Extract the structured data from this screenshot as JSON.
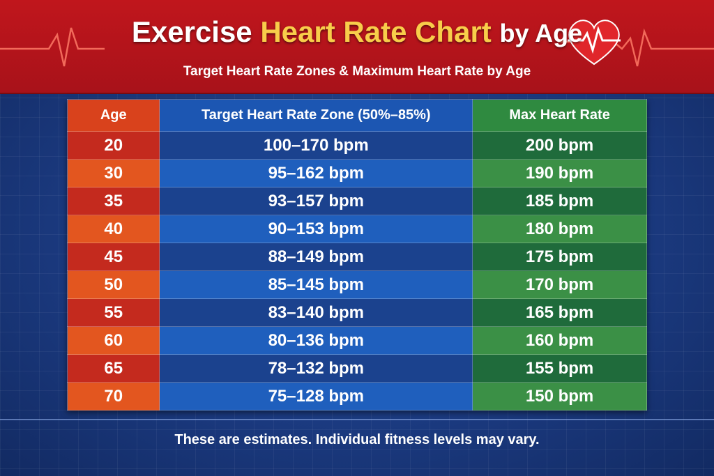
{
  "header": {
    "title": [
      "Exercise",
      "Heart Rate Chart",
      "by Age"
    ],
    "subtitle": "Target Heart Rate Zones & Maximum Heart Rate by Age"
  },
  "table": {
    "columns": [
      "Age",
      "Target Heart Rate Zone (50%–85%)",
      "Max Heart Rate"
    ],
    "rows": [
      [
        "20",
        "100–170 bpm",
        "200 bpm"
      ],
      [
        "30",
        "95–162 bpm",
        "190 bpm"
      ],
      [
        "35",
        "93–157 bpm",
        "185 bpm"
      ],
      [
        "40",
        "90–153 bpm",
        "180 bpm"
      ],
      [
        "45",
        "88–149 bpm",
        "175 bpm"
      ],
      [
        "50",
        "85–145 bpm",
        "170 bpm"
      ],
      [
        "55",
        "83–140 bpm",
        "165 bpm"
      ],
      [
        "60",
        "80–136 bpm",
        "160 bpm"
      ],
      [
        "65",
        "78–132 bpm",
        "155 bpm"
      ],
      [
        "70",
        "75–128 bpm",
        "150 bpm"
      ]
    ]
  },
  "footer": {
    "note": "These are estimates. Individual fitness levels may vary."
  }
}
